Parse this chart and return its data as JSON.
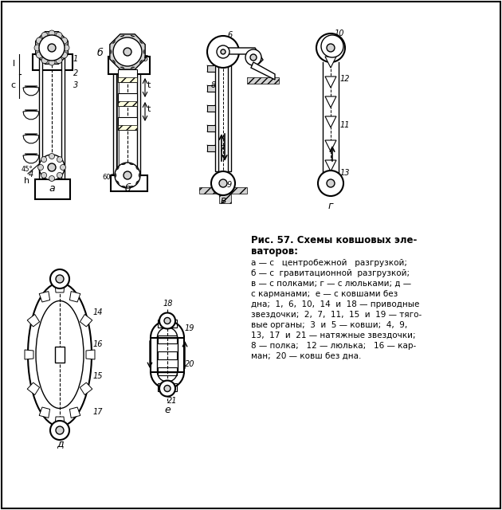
{
  "title": "Рис. 57. Схемы ковшовых элеваторов:",
  "caption_lines": [
    "а — с   центробежной   разгрузкой;",
    "б — с  гравитационной  разгрузкой;",
    "в — с полками; г — с люльками; д —",
    "с карманами;  е — с ковшами без",
    "дна;  1,  6,  10,  14  и  18 — приводные",
    "звездочки;  2,  7,  11,  15  и  19 — тяго-",
    "вые органы;  3  и  5 — ковши;  4,  9,",
    "13,  17  и  21 — натяжные звездочки;",
    "8 — полка;   12 — люлька;   16 — кар-",
    "ман;  20 — ковш без дна."
  ],
  "bg_color": "#ffffff",
  "line_color": "#000000",
  "label_a": "а",
  "label_b": "б",
  "label_v": "в",
  "label_g": "г",
  "label_d": "д",
  "label_e": "е"
}
